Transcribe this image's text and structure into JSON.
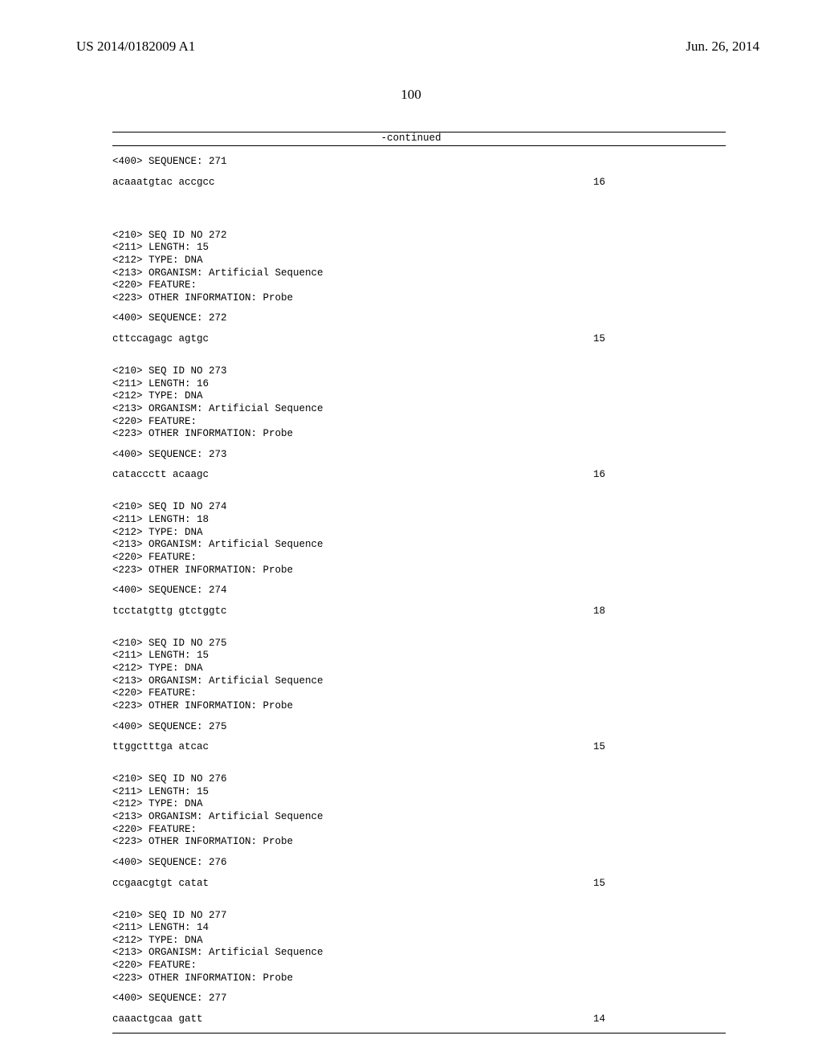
{
  "header": {
    "patent_no": "US 2014/0182009 A1",
    "date": "Jun. 26, 2014"
  },
  "page_number": "100",
  "continued_label": "-continued",
  "entries": [
    {
      "pre_lines": [
        "<400> SEQUENCE: 271"
      ],
      "sequence": "acaaatgtac accgcc",
      "length": "16"
    },
    {
      "header_lines": [
        "<210> SEQ ID NO 272",
        "<211> LENGTH: 15",
        "<212> TYPE: DNA",
        "<213> ORGANISM: Artificial Sequence",
        "<220> FEATURE:",
        "<223> OTHER INFORMATION: Probe"
      ],
      "seq_label": "<400> SEQUENCE: 272",
      "sequence": "cttccagagc agtgc",
      "length": "15"
    },
    {
      "header_lines": [
        "<210> SEQ ID NO 273",
        "<211> LENGTH: 16",
        "<212> TYPE: DNA",
        "<213> ORGANISM: Artificial Sequence",
        "<220> FEATURE:",
        "<223> OTHER INFORMATION: Probe"
      ],
      "seq_label": "<400> SEQUENCE: 273",
      "sequence": "cataccctt acaagc",
      "length": "16"
    },
    {
      "header_lines": [
        "<210> SEQ ID NO 274",
        "<211> LENGTH: 18",
        "<212> TYPE: DNA",
        "<213> ORGANISM: Artificial Sequence",
        "<220> FEATURE:",
        "<223> OTHER INFORMATION: Probe"
      ],
      "seq_label": "<400> SEQUENCE: 274",
      "sequence": "tcctatgttg gtctggtc",
      "length": "18"
    },
    {
      "header_lines": [
        "<210> SEQ ID NO 275",
        "<211> LENGTH: 15",
        "<212> TYPE: DNA",
        "<213> ORGANISM: Artificial Sequence",
        "<220> FEATURE:",
        "<223> OTHER INFORMATION: Probe"
      ],
      "seq_label": "<400> SEQUENCE: 275",
      "sequence": "ttggctttga atcac",
      "length": "15"
    },
    {
      "header_lines": [
        "<210> SEQ ID NO 276",
        "<211> LENGTH: 15",
        "<212> TYPE: DNA",
        "<213> ORGANISM: Artificial Sequence",
        "<220> FEATURE:",
        "<223> OTHER INFORMATION: Probe"
      ],
      "seq_label": "<400> SEQUENCE: 276",
      "sequence": "ccgaacgtgt catat",
      "length": "15"
    },
    {
      "header_lines": [
        "<210> SEQ ID NO 277",
        "<211> LENGTH: 14",
        "<212> TYPE: DNA",
        "<213> ORGANISM: Artificial Sequence",
        "<220> FEATURE:",
        "<223> OTHER INFORMATION: Probe"
      ],
      "seq_label": "<400> SEQUENCE: 277",
      "sequence": "caaactgcaa gatt",
      "length": "14"
    }
  ]
}
